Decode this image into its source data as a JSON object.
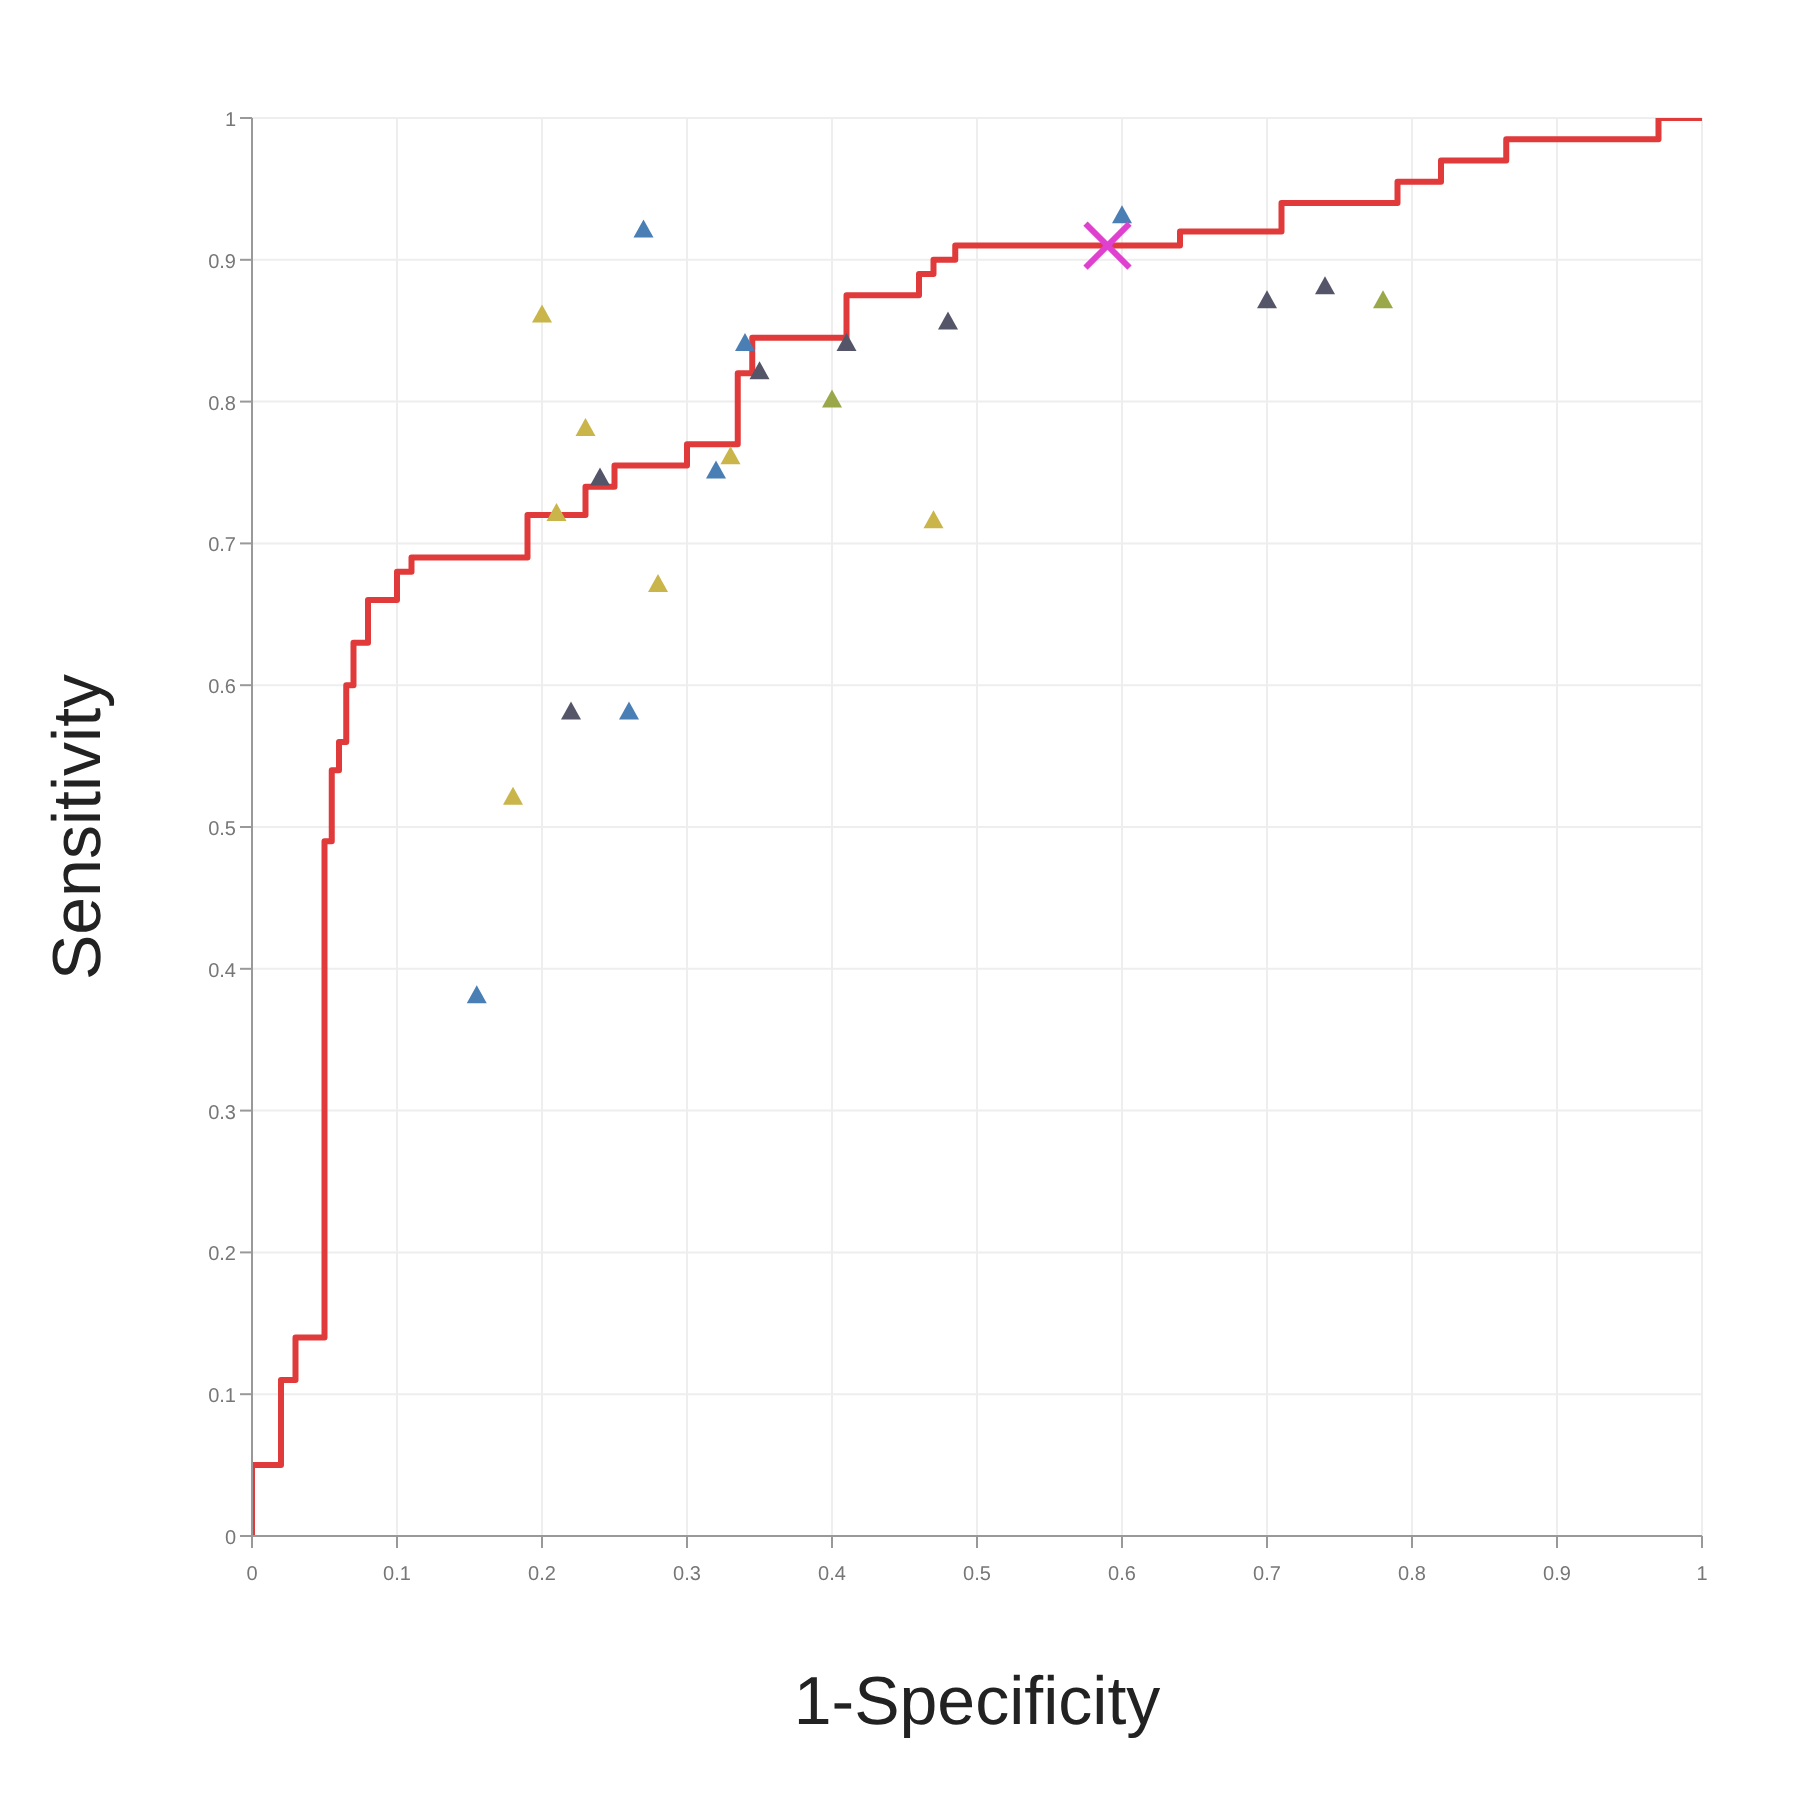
{
  "chart_data": {
    "type": "scatter",
    "xlabel": "1-Specificity",
    "ylabel": "Sensitivity",
    "xlim": [
      0,
      1
    ],
    "ylim": [
      0,
      1
    ],
    "xticks": [
      0,
      0.1,
      0.2,
      0.3,
      0.4,
      0.5,
      0.6,
      0.7,
      0.8,
      0.9,
      1
    ],
    "yticks": [
      0,
      0.1,
      0.2,
      0.3,
      0.4,
      0.5,
      0.6,
      0.7,
      0.8,
      0.9,
      1
    ],
    "grid": true,
    "marker": "triangle",
    "series": [
      {
        "type": "step",
        "color": "#e03a3a",
        "marker": "none",
        "x": [
          0,
          0,
          0.02,
          0.03,
          0.05,
          0.055,
          0.06,
          0.065,
          0.07,
          0.08,
          0.1,
          0.11,
          0.19,
          0.23,
          0.25,
          0.3,
          0.335,
          0.345,
          0.41,
          0.46,
          0.47,
          0.485,
          0.64,
          0.71,
          0.79,
          0.82,
          0.865,
          0.97,
          1
        ],
        "values": [
          0,
          0.05,
          0.11,
          0.14,
          0.49,
          0.54,
          0.56,
          0.6,
          0.63,
          0.66,
          0.68,
          0.69,
          0.72,
          0.74,
          0.755,
          0.77,
          0.82,
          0.845,
          0.875,
          0.89,
          0.9,
          0.91,
          0.92,
          0.94,
          0.955,
          0.97,
          0.985,
          1,
          1
        ]
      },
      {
        "color": "#4a7fb5",
        "x": [
          0.27,
          0.34,
          0.32,
          0.26,
          0.155,
          0.6
        ],
        "values": [
          0.92,
          0.84,
          0.75,
          0.58,
          0.38,
          0.93
        ]
      },
      {
        "color": "#c9b54a",
        "x": [
          0.2,
          0.23,
          0.21,
          0.33,
          0.47,
          0.28,
          0.18
        ],
        "values": [
          0.86,
          0.78,
          0.72,
          0.76,
          0.715,
          0.67,
          0.52
        ]
      },
      {
        "color": "#55556a",
        "x": [
          0.35,
          0.41,
          0.48,
          0.24,
          0.22,
          0.7,
          0.74
        ],
        "values": [
          0.82,
          0.84,
          0.855,
          0.745,
          0.58,
          0.87,
          0.88
        ]
      },
      {
        "color": "#9aa84a",
        "x": [
          0.4,
          0.78
        ],
        "values": [
          0.8,
          0.87
        ]
      },
      {
        "color": "#e040d0",
        "marker": "cross",
        "x": [
          0.59
        ],
        "values": [
          0.91
        ]
      }
    ]
  }
}
